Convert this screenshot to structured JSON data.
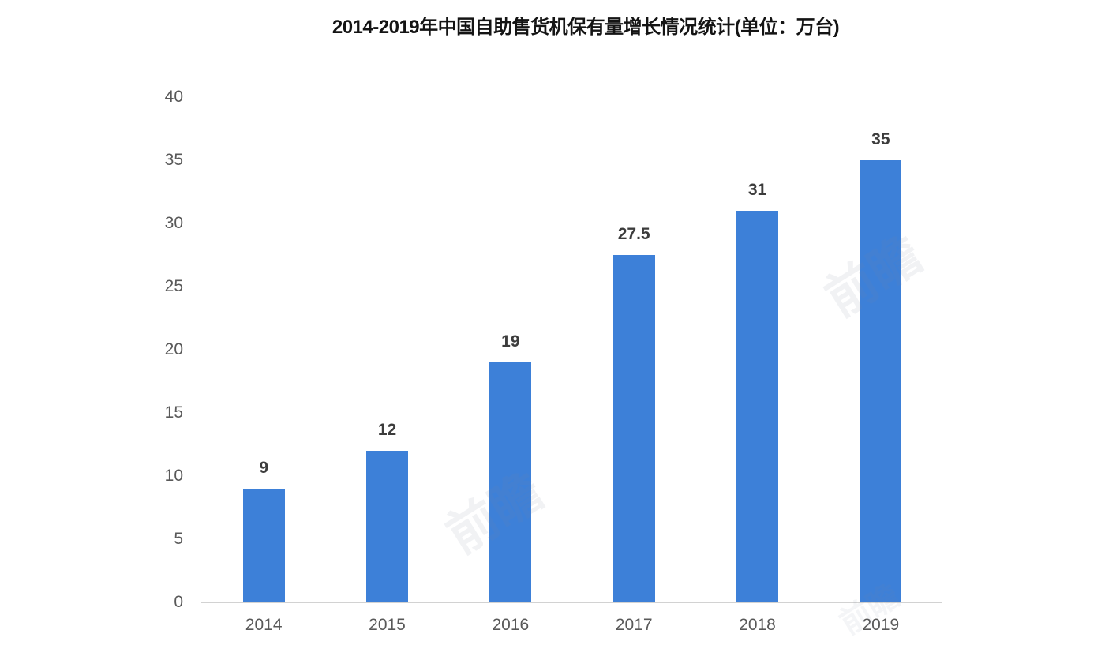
{
  "title": "2014-2019年中国自助售货机保有量增长情况统计(单位：万台)",
  "watermark_text": "前瞻",
  "colors": {
    "bar": "#3d80d8",
    "axis_line": "#d2d2d2",
    "tick_text": "#595959",
    "value_text": "#3c3c3c",
    "title_text": "#141414"
  },
  "chart_data": {
    "type": "bar",
    "title": "2014-2019年中国自助售货机保有量增长情况统计(单位：万台)",
    "categories": [
      "2014",
      "2015",
      "2016",
      "2017",
      "2018",
      "2019"
    ],
    "values": [
      9,
      12,
      19,
      27.5,
      31,
      35
    ],
    "value_labels": [
      "9",
      "12",
      "19",
      "27.5",
      "31",
      "35"
    ],
    "xlabel": "",
    "ylabel": "",
    "unit": "万台",
    "ylim": [
      0,
      40
    ],
    "yticks": [
      0,
      5,
      10,
      15,
      20,
      25,
      30,
      35,
      40
    ],
    "grid": false,
    "legend_position": "none",
    "bar_color": "#3d80d8"
  }
}
